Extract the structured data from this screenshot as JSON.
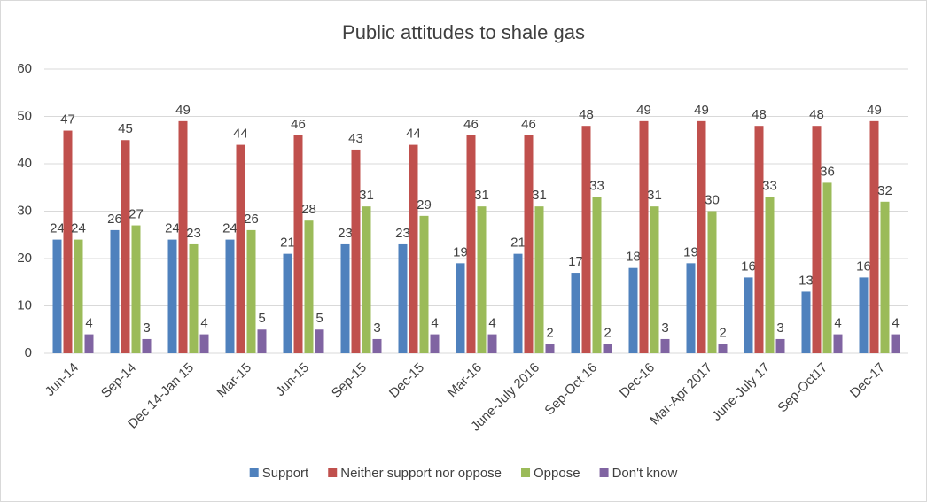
{
  "chart_data": {
    "type": "bar",
    "title": "Public attitudes to shale gas",
    "categories": [
      "Jun-14",
      "Sep-14",
      "Dec 14-Jan 15",
      "Mar-15",
      "Jun-15",
      "Sep-15",
      "Dec-15",
      "Mar-16",
      "June-July 2016",
      "Sep-Oct 16",
      "Dec-16",
      "Mar-Apr 2017",
      "June-July 17",
      "Sep-Oct17",
      "Dec-17"
    ],
    "series": [
      {
        "name": "Support",
        "color": "#4f81bd",
        "values": [
          24,
          26,
          24,
          24,
          21,
          23,
          23,
          19,
          21,
          17,
          18,
          19,
          16,
          13,
          16
        ]
      },
      {
        "name": "Neither support nor oppose",
        "color": "#c0504d",
        "values": [
          47,
          45,
          49,
          44,
          46,
          43,
          44,
          46,
          46,
          48,
          49,
          49,
          48,
          48,
          49
        ]
      },
      {
        "name": "Oppose",
        "color": "#9bbb59",
        "values": [
          24,
          27,
          23,
          26,
          28,
          31,
          29,
          31,
          31,
          33,
          31,
          30,
          33,
          36,
          32
        ]
      },
      {
        "name": "Don't know",
        "color": "#8064a2",
        "values": [
          4,
          3,
          4,
          5,
          5,
          3,
          4,
          4,
          2,
          2,
          3,
          2,
          3,
          4,
          4
        ]
      }
    ],
    "ylim": [
      0,
      60
    ],
    "yticks": [
      0,
      10,
      20,
      30,
      40,
      50,
      60
    ],
    "grid": true,
    "legend": "bottom"
  }
}
